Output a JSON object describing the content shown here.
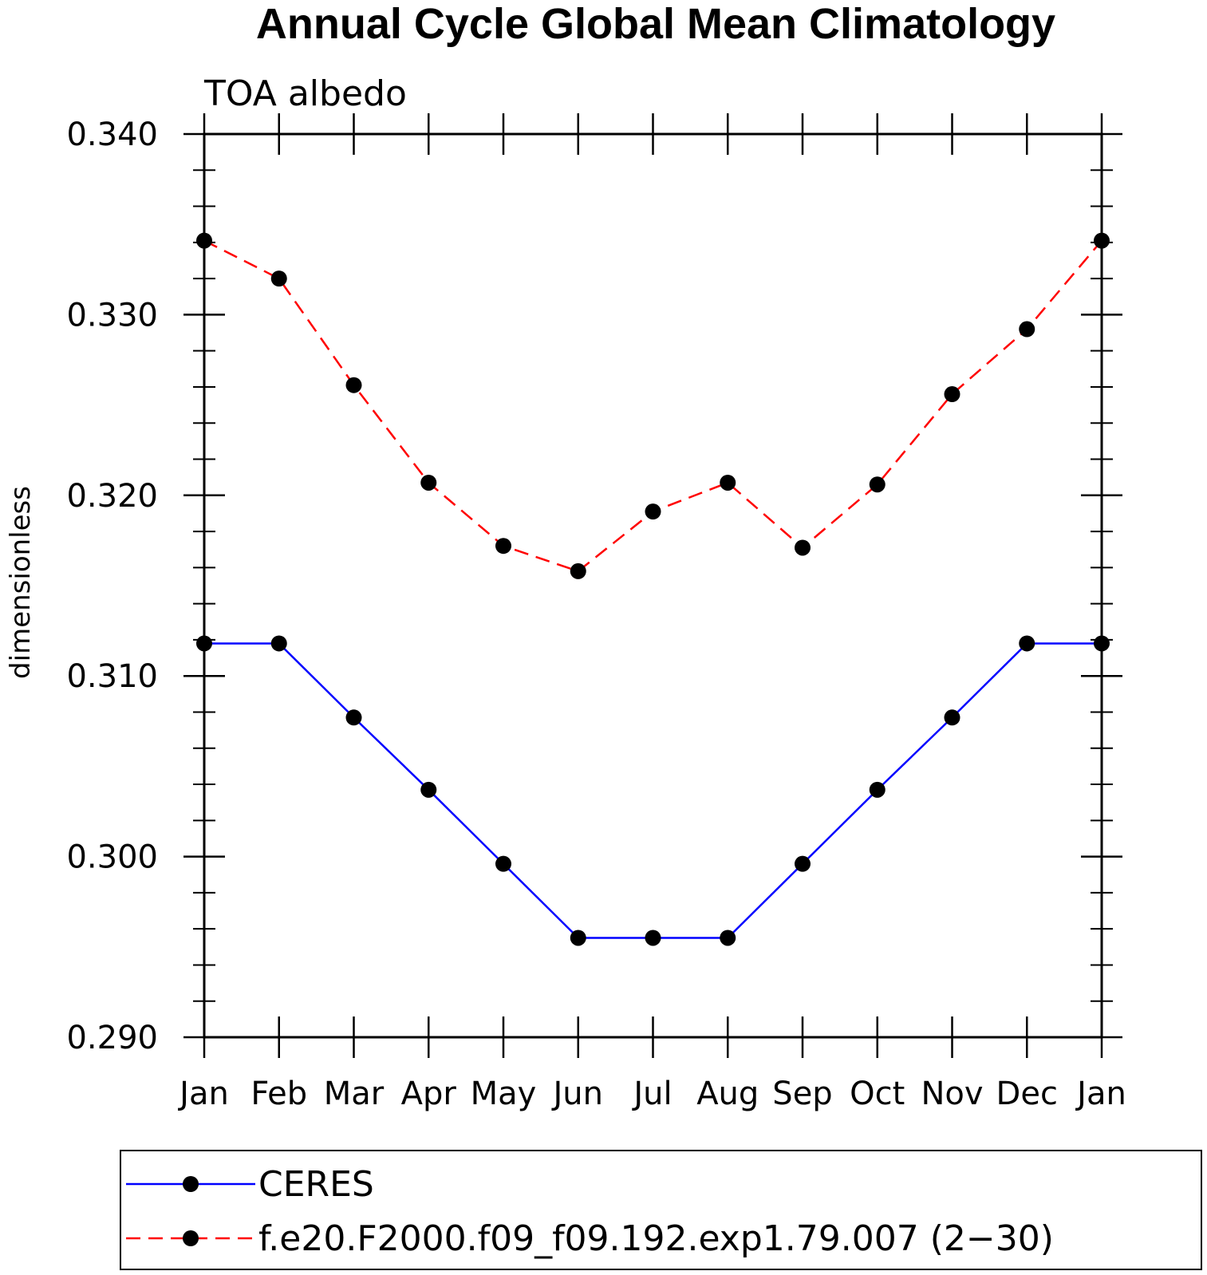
{
  "chart_data": {
    "type": "line",
    "title": "Annual Cycle Global Mean Climatology",
    "subtitle": "TOA albedo",
    "xlabel": "",
    "ylabel": "dimensionless",
    "categories": [
      "Jan",
      "Feb",
      "Mar",
      "Apr",
      "May",
      "Jun",
      "Jul",
      "Aug",
      "Sep",
      "Oct",
      "Nov",
      "Dec",
      "Jan"
    ],
    "ylim": [
      0.29,
      0.34
    ],
    "yticks": [
      "0.290",
      "0.300",
      "0.310",
      "0.320",
      "0.330",
      "0.340"
    ],
    "ytick_values": [
      0.29,
      0.3,
      0.31,
      0.32,
      0.33,
      0.34
    ],
    "y_minor_step": 0.002,
    "grid": false,
    "legend_position": "bottom",
    "series": [
      {
        "name": "CERES",
        "color": "#0000ff",
        "style": "solid",
        "values": [
          0.3118,
          0.3118,
          0.3077,
          0.3037,
          0.2996,
          0.2955,
          0.2955,
          0.2955,
          0.2996,
          0.3037,
          0.3077,
          0.3118,
          0.3118
        ]
      },
      {
        "name": "f.e20.F2000.f09_f09.192.exp1.79.007 (2−30)",
        "color": "#ff0000",
        "style": "dashed",
        "values": [
          0.3341,
          0.332,
          0.3261,
          0.3207,
          0.3172,
          0.3158,
          0.3191,
          0.3207,
          0.3171,
          0.3206,
          0.3256,
          0.3292,
          0.3341
        ]
      }
    ],
    "marker_color": "#000000"
  }
}
